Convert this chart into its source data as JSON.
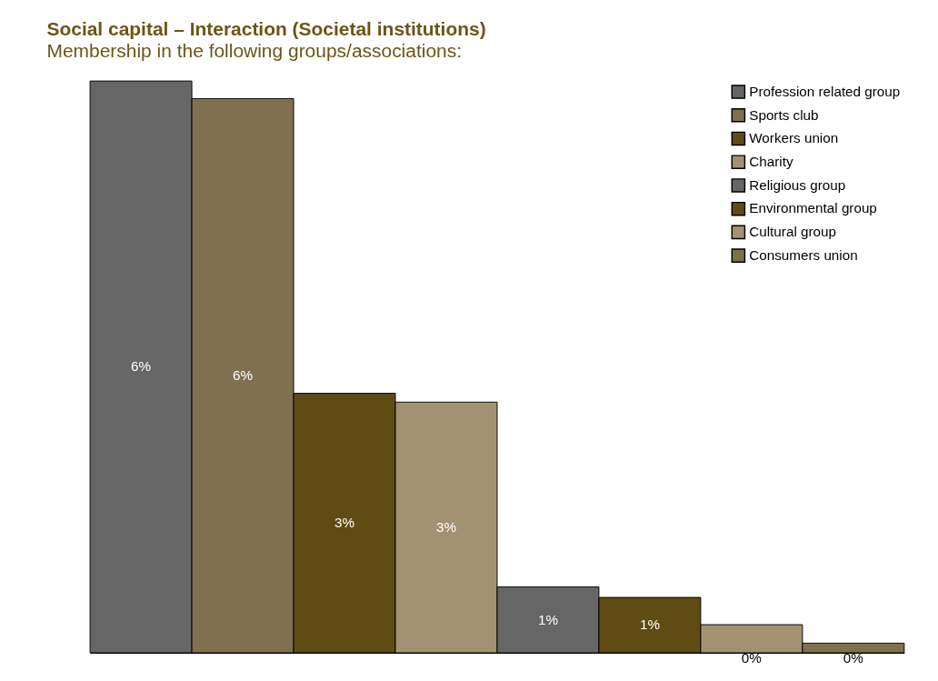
{
  "chart_data": {
    "type": "bar",
    "title": "Social capital – Interaction (Societal institutions)",
    "subtitle": "Membership in the following groups/associations:",
    "categories": [
      null
    ],
    "series": [
      {
        "name": "Profession related group",
        "color": "#666666",
        "values": [
          6.5
        ],
        "value_labels": [
          "6%"
        ]
      },
      {
        "name": "Sports club",
        "color": "#7f7050",
        "values": [
          6.3
        ],
        "value_labels": [
          "6%"
        ]
      },
      {
        "name": "Workers union",
        "color": "#5f4b14",
        "values": [
          2.95
        ],
        "value_labels": [
          "3%"
        ]
      },
      {
        "name": "Charity",
        "color": "#a39271",
        "values": [
          2.85
        ],
        "value_labels": [
          "3%"
        ]
      },
      {
        "name": "Religious group",
        "color": "#666666",
        "values": [
          0.75
        ],
        "value_labels": [
          "1%"
        ]
      },
      {
        "name": "Environmental group",
        "color": "#5f4b14",
        "values": [
          0.63
        ],
        "value_labels": [
          "1%"
        ]
      },
      {
        "name": "Cultural group",
        "color": "#a39271",
        "values": [
          0.32
        ],
        "value_labels": [
          "0%"
        ]
      },
      {
        "name": "Consumers union",
        "color": "#7f7050",
        "values": [
          0.11
        ],
        "value_labels": [
          "0%"
        ]
      }
    ],
    "ylim": [
      0,
      6.5
    ],
    "tick_labels": false,
    "legend": "top right"
  }
}
